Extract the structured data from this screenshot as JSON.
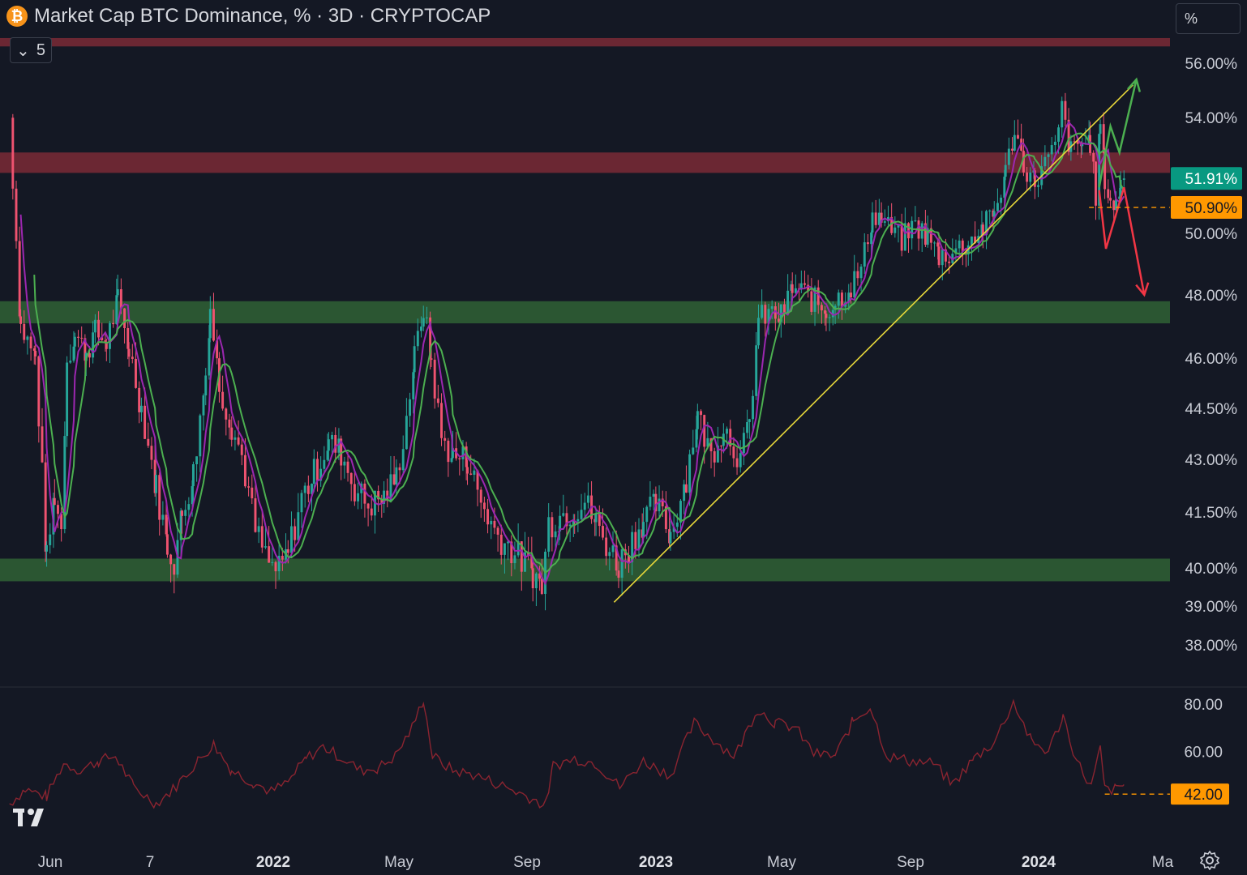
{
  "header": {
    "symbol_icon": "bitcoin-icon",
    "title": "Market Cap BTC Dominance, % · 3D · CRYPTOCAP",
    "collapse_count": "5"
  },
  "scale": {
    "unit_label": "%"
  },
  "colors": {
    "background": "#141824",
    "up": "#26a69a",
    "down": "#ef5370",
    "ma_fast": "#9c27b0",
    "ma_slow": "#4caf50",
    "trendline": "#e8d83a",
    "resistance_zone": "#7a2a36",
    "support_zone": "#2c5a34",
    "last_price_badge": "#089981",
    "level_badge": "#ff9800",
    "rsi_line": "#8b2430",
    "arrow_up": "#4caf50",
    "arrow_down": "#f23645"
  },
  "chart_data": [
    {
      "type": "candlestick",
      "title": "Market Cap BTC Dominance, % · 3D · CRYPTOCAP",
      "y_ticks": [
        "56.00%",
        "54.00%",
        "50.00%",
        "48.00%",
        "46.00%",
        "44.50%",
        "43.00%",
        "41.50%",
        "40.00%",
        "39.00%",
        "38.00%"
      ],
      "y_tick_values": [
        56,
        54,
        50,
        48,
        46,
        44.5,
        43,
        41.5,
        40,
        39,
        38
      ],
      "x_ticks": [
        "Jun",
        "7",
        "2022",
        "May",
        "Sep",
        "2023",
        "May",
        "Sep",
        "2024",
        "Ma"
      ],
      "last_value_label": "51.91%",
      "level_label": "50.90%",
      "last_value": 51.91,
      "level_value": 50.9,
      "resistance_zones": [
        [
          56.6,
          56.9
        ],
        [
          52.1,
          52.8
        ]
      ],
      "support_zones": [
        [
          47.1,
          47.8
        ],
        [
          39.65,
          40.25
        ]
      ],
      "trendline": {
        "from": [
          "2022-11-05",
          39.1
        ],
        "to": [
          "2024-02-08",
          55.2
        ]
      },
      "projections": [
        {
          "direction": "up",
          "points": [
            [
              "2024-01-09",
              51.6
            ],
            [
              "2024-01-19",
              53.7
            ],
            [
              "2024-01-27",
              52.8
            ],
            [
              "2024-02-11",
              55.4
            ]
          ]
        },
        {
          "direction": "down",
          "points": [
            [
              "2024-01-09",
              51.5
            ],
            [
              "2024-01-15",
              49.5
            ],
            [
              "2024-01-31",
              51.6
            ],
            [
              "2024-02-18",
              48.0
            ]
          ]
        }
      ],
      "anchors": [
        [
          "2021-05-18",
          54
        ],
        [
          "2021-05-28",
          47
        ],
        [
          "2021-06-10",
          46
        ],
        [
          "2021-06-20",
          40.2
        ],
        [
          "2021-06-27",
          42
        ],
        [
          "2021-07-03",
          41
        ],
        [
          "2021-07-08",
          46
        ],
        [
          "2021-07-15",
          46.7
        ],
        [
          "2021-07-25",
          46.2
        ],
        [
          "2021-08-02",
          46.8
        ],
        [
          "2021-08-12",
          46.5
        ],
        [
          "2021-08-22",
          47.8
        ],
        [
          "2021-09-01",
          46.3
        ],
        [
          "2021-09-12",
          44.5
        ],
        [
          "2021-09-25",
          42.2
        ],
        [
          "2021-10-05",
          40.6
        ],
        [
          "2021-10-11",
          40.2
        ],
        [
          "2021-10-18",
          41.4
        ],
        [
          "2021-10-28",
          42.6
        ],
        [
          "2021-11-08",
          45.5
        ],
        [
          "2021-11-12",
          47.6
        ],
        [
          "2021-11-20",
          45.2
        ],
        [
          "2021-12-01",
          44
        ],
        [
          "2021-12-10",
          43.1
        ],
        [
          "2021-12-22",
          41
        ],
        [
          "2022-01-03",
          40.1
        ],
        [
          "2022-01-12",
          39.9
        ],
        [
          "2022-01-20",
          40.4
        ],
        [
          "2022-02-01",
          41.9
        ],
        [
          "2022-02-12",
          42.6
        ],
        [
          "2022-02-25",
          43.5
        ],
        [
          "2022-03-08",
          43.2
        ],
        [
          "2022-03-20",
          42.2
        ],
        [
          "2022-04-01",
          41.7
        ],
        [
          "2022-04-15",
          41.9
        ],
        [
          "2022-04-26",
          42.5
        ],
        [
          "2022-05-05",
          44.2
        ],
        [
          "2022-05-12",
          46
        ],
        [
          "2022-05-20",
          47.6
        ],
        [
          "2022-05-27",
          45.9
        ],
        [
          "2022-06-05",
          43.6
        ],
        [
          "2022-06-15",
          43.1
        ],
        [
          "2022-06-28",
          43
        ],
        [
          "2022-07-10",
          41.8
        ],
        [
          "2022-07-22",
          41
        ],
        [
          "2022-08-03",
          40.6
        ],
        [
          "2022-08-15",
          40.2
        ],
        [
          "2022-08-25",
          39.9
        ],
        [
          "2022-09-02",
          39.5
        ],
        [
          "2022-09-08",
          41.2
        ],
        [
          "2022-09-18",
          41.4
        ],
        [
          "2022-10-01",
          41.6
        ],
        [
          "2022-10-10",
          41.8
        ],
        [
          "2022-10-20",
          41.2
        ],
        [
          "2022-11-01",
          40.5
        ],
        [
          "2022-11-09",
          40.1
        ],
        [
          "2022-11-18",
          40.6
        ],
        [
          "2022-12-01",
          41.3
        ],
        [
          "2022-12-12",
          41.7
        ],
        [
          "2022-12-25",
          40.9
        ],
        [
          "2023-01-08",
          42.5
        ],
        [
          "2023-01-18",
          44.3
        ],
        [
          "2023-01-30",
          43.1
        ],
        [
          "2023-02-10",
          44
        ],
        [
          "2023-02-25",
          43
        ],
        [
          "2023-03-05",
          44
        ],
        [
          "2023-03-13",
          47.2
        ],
        [
          "2023-03-22",
          47.4
        ],
        [
          "2023-04-02",
          47.3
        ],
        [
          "2023-04-12",
          48.2
        ],
        [
          "2023-04-20",
          48.1
        ],
        [
          "2023-05-02",
          47.8
        ],
        [
          "2023-05-12",
          47.5
        ],
        [
          "2023-05-20",
          47.8
        ],
        [
          "2023-06-03",
          48.3
        ],
        [
          "2023-06-12",
          48.8
        ],
        [
          "2023-06-22",
          50.6
        ],
        [
          "2023-06-30",
          50.5
        ],
        [
          "2023-07-06",
          50.2
        ],
        [
          "2023-07-18",
          49.8
        ],
        [
          "2023-07-30",
          50.3
        ],
        [
          "2023-08-10",
          49.9
        ],
        [
          "2023-08-20",
          49.3
        ],
        [
          "2023-09-01",
          49.4
        ],
        [
          "2023-09-15",
          49.7
        ],
        [
          "2023-09-28",
          50.2
        ],
        [
          "2023-10-08",
          50.7
        ],
        [
          "2023-10-18",
          52.1
        ],
        [
          "2023-10-26",
          53.6
        ],
        [
          "2023-11-03",
          52.4
        ],
        [
          "2023-11-13",
          51.8
        ],
        [
          "2023-11-22",
          52.4
        ],
        [
          "2023-12-01",
          52.9
        ],
        [
          "2023-12-07",
          54.3
        ],
        [
          "2023-12-15",
          52.8
        ],
        [
          "2023-12-25",
          53.1
        ],
        [
          "2024-01-01",
          53.2
        ],
        [
          "2024-01-06",
          51.3
        ],
        [
          "2024-01-10",
          53.8
        ],
        [
          "2024-01-14",
          51.9
        ],
        [
          "2024-01-19",
          51.1
        ],
        [
          "2024-01-24",
          50.95
        ],
        [
          "2024-01-28",
          51.7
        ],
        [
          "2024-01-31",
          51.91
        ]
      ]
    },
    {
      "type": "line",
      "title": "",
      "y_ticks": [
        "80.00",
        "60.00"
      ],
      "y_tick_values": [
        80,
        60
      ],
      "level_label": "42.00",
      "level_value": 42,
      "anchors": [
        [
          "2021-05-18",
          38
        ],
        [
          "2021-06-01",
          44
        ],
        [
          "2021-06-20",
          41
        ],
        [
          "2021-07-05",
          55
        ],
        [
          "2021-07-20",
          52
        ],
        [
          "2021-08-05",
          56
        ],
        [
          "2021-08-20",
          58
        ],
        [
          "2021-09-05",
          45
        ],
        [
          "2021-09-25",
          38
        ],
        [
          "2021-10-10",
          44
        ],
        [
          "2021-11-01",
          56
        ],
        [
          "2021-11-15",
          63
        ],
        [
          "2021-12-01",
          52
        ],
        [
          "2021-12-20",
          47
        ],
        [
          "2022-01-05",
          43
        ],
        [
          "2022-01-20",
          47
        ],
        [
          "2022-02-05",
          57
        ],
        [
          "2022-02-20",
          62
        ],
        [
          "2022-03-10",
          57
        ],
        [
          "2022-03-25",
          52
        ],
        [
          "2022-04-10",
          53
        ],
        [
          "2022-04-25",
          58
        ],
        [
          "2022-05-10",
          70
        ],
        [
          "2022-05-20",
          82
        ],
        [
          "2022-05-28",
          58
        ],
        [
          "2022-06-15",
          52
        ],
        [
          "2022-07-05",
          50
        ],
        [
          "2022-08-01",
          45
        ],
        [
          "2022-08-25",
          40
        ],
        [
          "2022-09-05",
          37
        ],
        [
          "2022-09-12",
          54
        ],
        [
          "2022-10-01",
          57
        ],
        [
          "2022-10-20",
          55
        ],
        [
          "2022-11-10",
          45
        ],
        [
          "2022-12-01",
          56
        ],
        [
          "2022-12-25",
          50
        ],
        [
          "2023-01-15",
          72
        ],
        [
          "2023-02-01",
          65
        ],
        [
          "2023-02-20",
          58
        ],
        [
          "2023-03-12",
          78
        ],
        [
          "2023-03-28",
          72
        ],
        [
          "2023-04-15",
          70
        ],
        [
          "2023-05-01",
          59
        ],
        [
          "2023-05-20",
          58
        ],
        [
          "2023-06-05",
          73
        ],
        [
          "2023-06-20",
          79
        ],
        [
          "2023-07-05",
          58
        ],
        [
          "2023-07-25",
          56
        ],
        [
          "2023-08-15",
          55
        ],
        [
          "2023-09-01",
          46
        ],
        [
          "2023-09-20",
          57
        ],
        [
          "2023-10-08",
          64
        ],
        [
          "2023-10-25",
          81
        ],
        [
          "2023-11-10",
          64
        ],
        [
          "2023-11-25",
          60
        ],
        [
          "2023-12-08",
          75
        ],
        [
          "2023-12-20",
          56
        ],
        [
          "2024-01-02",
          45
        ],
        [
          "2024-01-10",
          61
        ],
        [
          "2024-01-14",
          44
        ],
        [
          "2024-01-24",
          44
        ],
        [
          "2024-01-31",
          46
        ]
      ]
    }
  ]
}
